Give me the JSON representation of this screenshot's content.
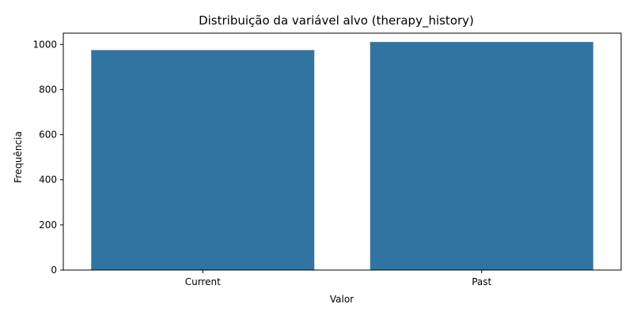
{
  "chart_data": {
    "type": "bar",
    "title": "Distribuição da variável alvo (therapy_history)",
    "xlabel": "Valor",
    "ylabel": "Frequência",
    "categories": [
      "Current",
      "Past"
    ],
    "values": [
      975,
      1011
    ],
    "ylim": [
      0,
      1050
    ],
    "yticks": [
      0,
      200,
      400,
      600,
      800,
      1000
    ],
    "grid": false,
    "legend": "none",
    "bar_color": "#3274a1"
  }
}
